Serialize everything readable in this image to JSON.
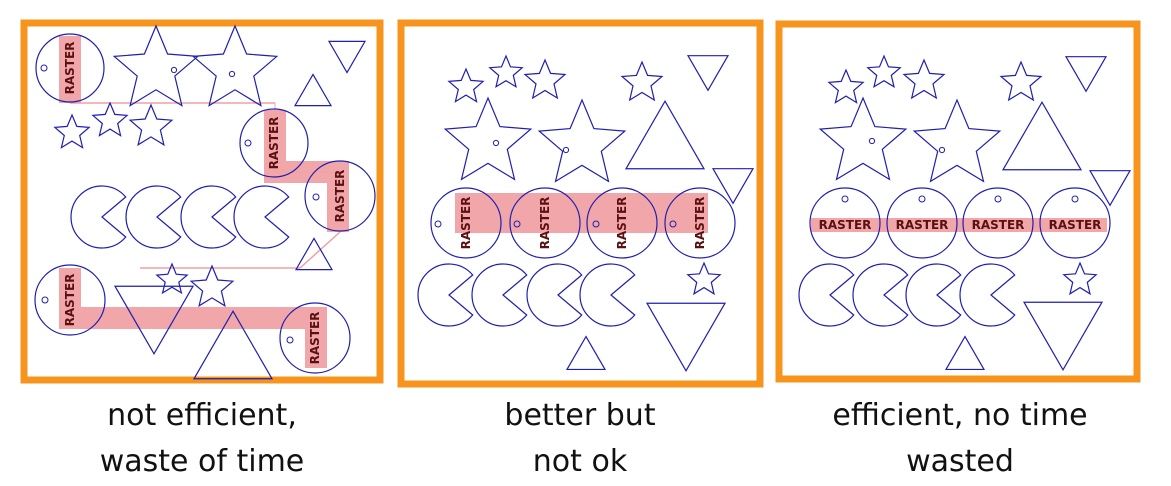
{
  "colors": {
    "frame": "#f7941d",
    "outline": "#1f1fb0",
    "raster_fill": "#f0a0a3",
    "raster_text": "#5a1010"
  },
  "raster_label": "RASTER",
  "panels": [
    {
      "caption": "not efficient,\nwaste of time"
    },
    {
      "caption": "better but\nnot ok"
    },
    {
      "caption": "efficient, no time\nwasted"
    }
  ]
}
